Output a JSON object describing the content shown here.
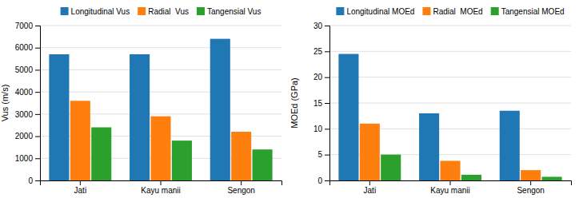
{
  "chart_data": [
    {
      "type": "bar",
      "ylabel": "Vus (m/s)",
      "categories": [
        "Jati",
        "Kayu manii",
        "Sengon"
      ],
      "series": [
        {
          "name": "Longitudinal Vus",
          "values": [
            5700,
            5700,
            6400
          ]
        },
        {
          "name": "Radial  Vus",
          "values": [
            3600,
            2900,
            2200
          ]
        },
        {
          "name": "Tangensial Vus",
          "values": [
            2400,
            1800,
            1400
          ]
        }
      ],
      "ylim": [
        0,
        7000
      ],
      "yticks": [
        0,
        1000,
        2000,
        3000,
        4000,
        5000,
        6000,
        7000
      ],
      "grid": true,
      "legend": "top"
    },
    {
      "type": "bar",
      "ylabel": "MOEd (GPa)",
      "categories": [
        "Jati",
        "Kayu manii",
        "Sengon"
      ],
      "series": [
        {
          "name": "Longitudinal MOEd",
          "values": [
            24.5,
            13.0,
            13.5
          ]
        },
        {
          "name": "Radial  MOEd",
          "values": [
            11.0,
            3.8,
            2.0
          ]
        },
        {
          "name": "Tangensial MOEd",
          "values": [
            5.0,
            1.1,
            0.7
          ]
        }
      ],
      "ylim": [
        0,
        30
      ],
      "yticks": [
        0,
        5,
        10,
        15,
        20,
        25,
        30
      ],
      "grid": true,
      "legend": "top"
    }
  ]
}
